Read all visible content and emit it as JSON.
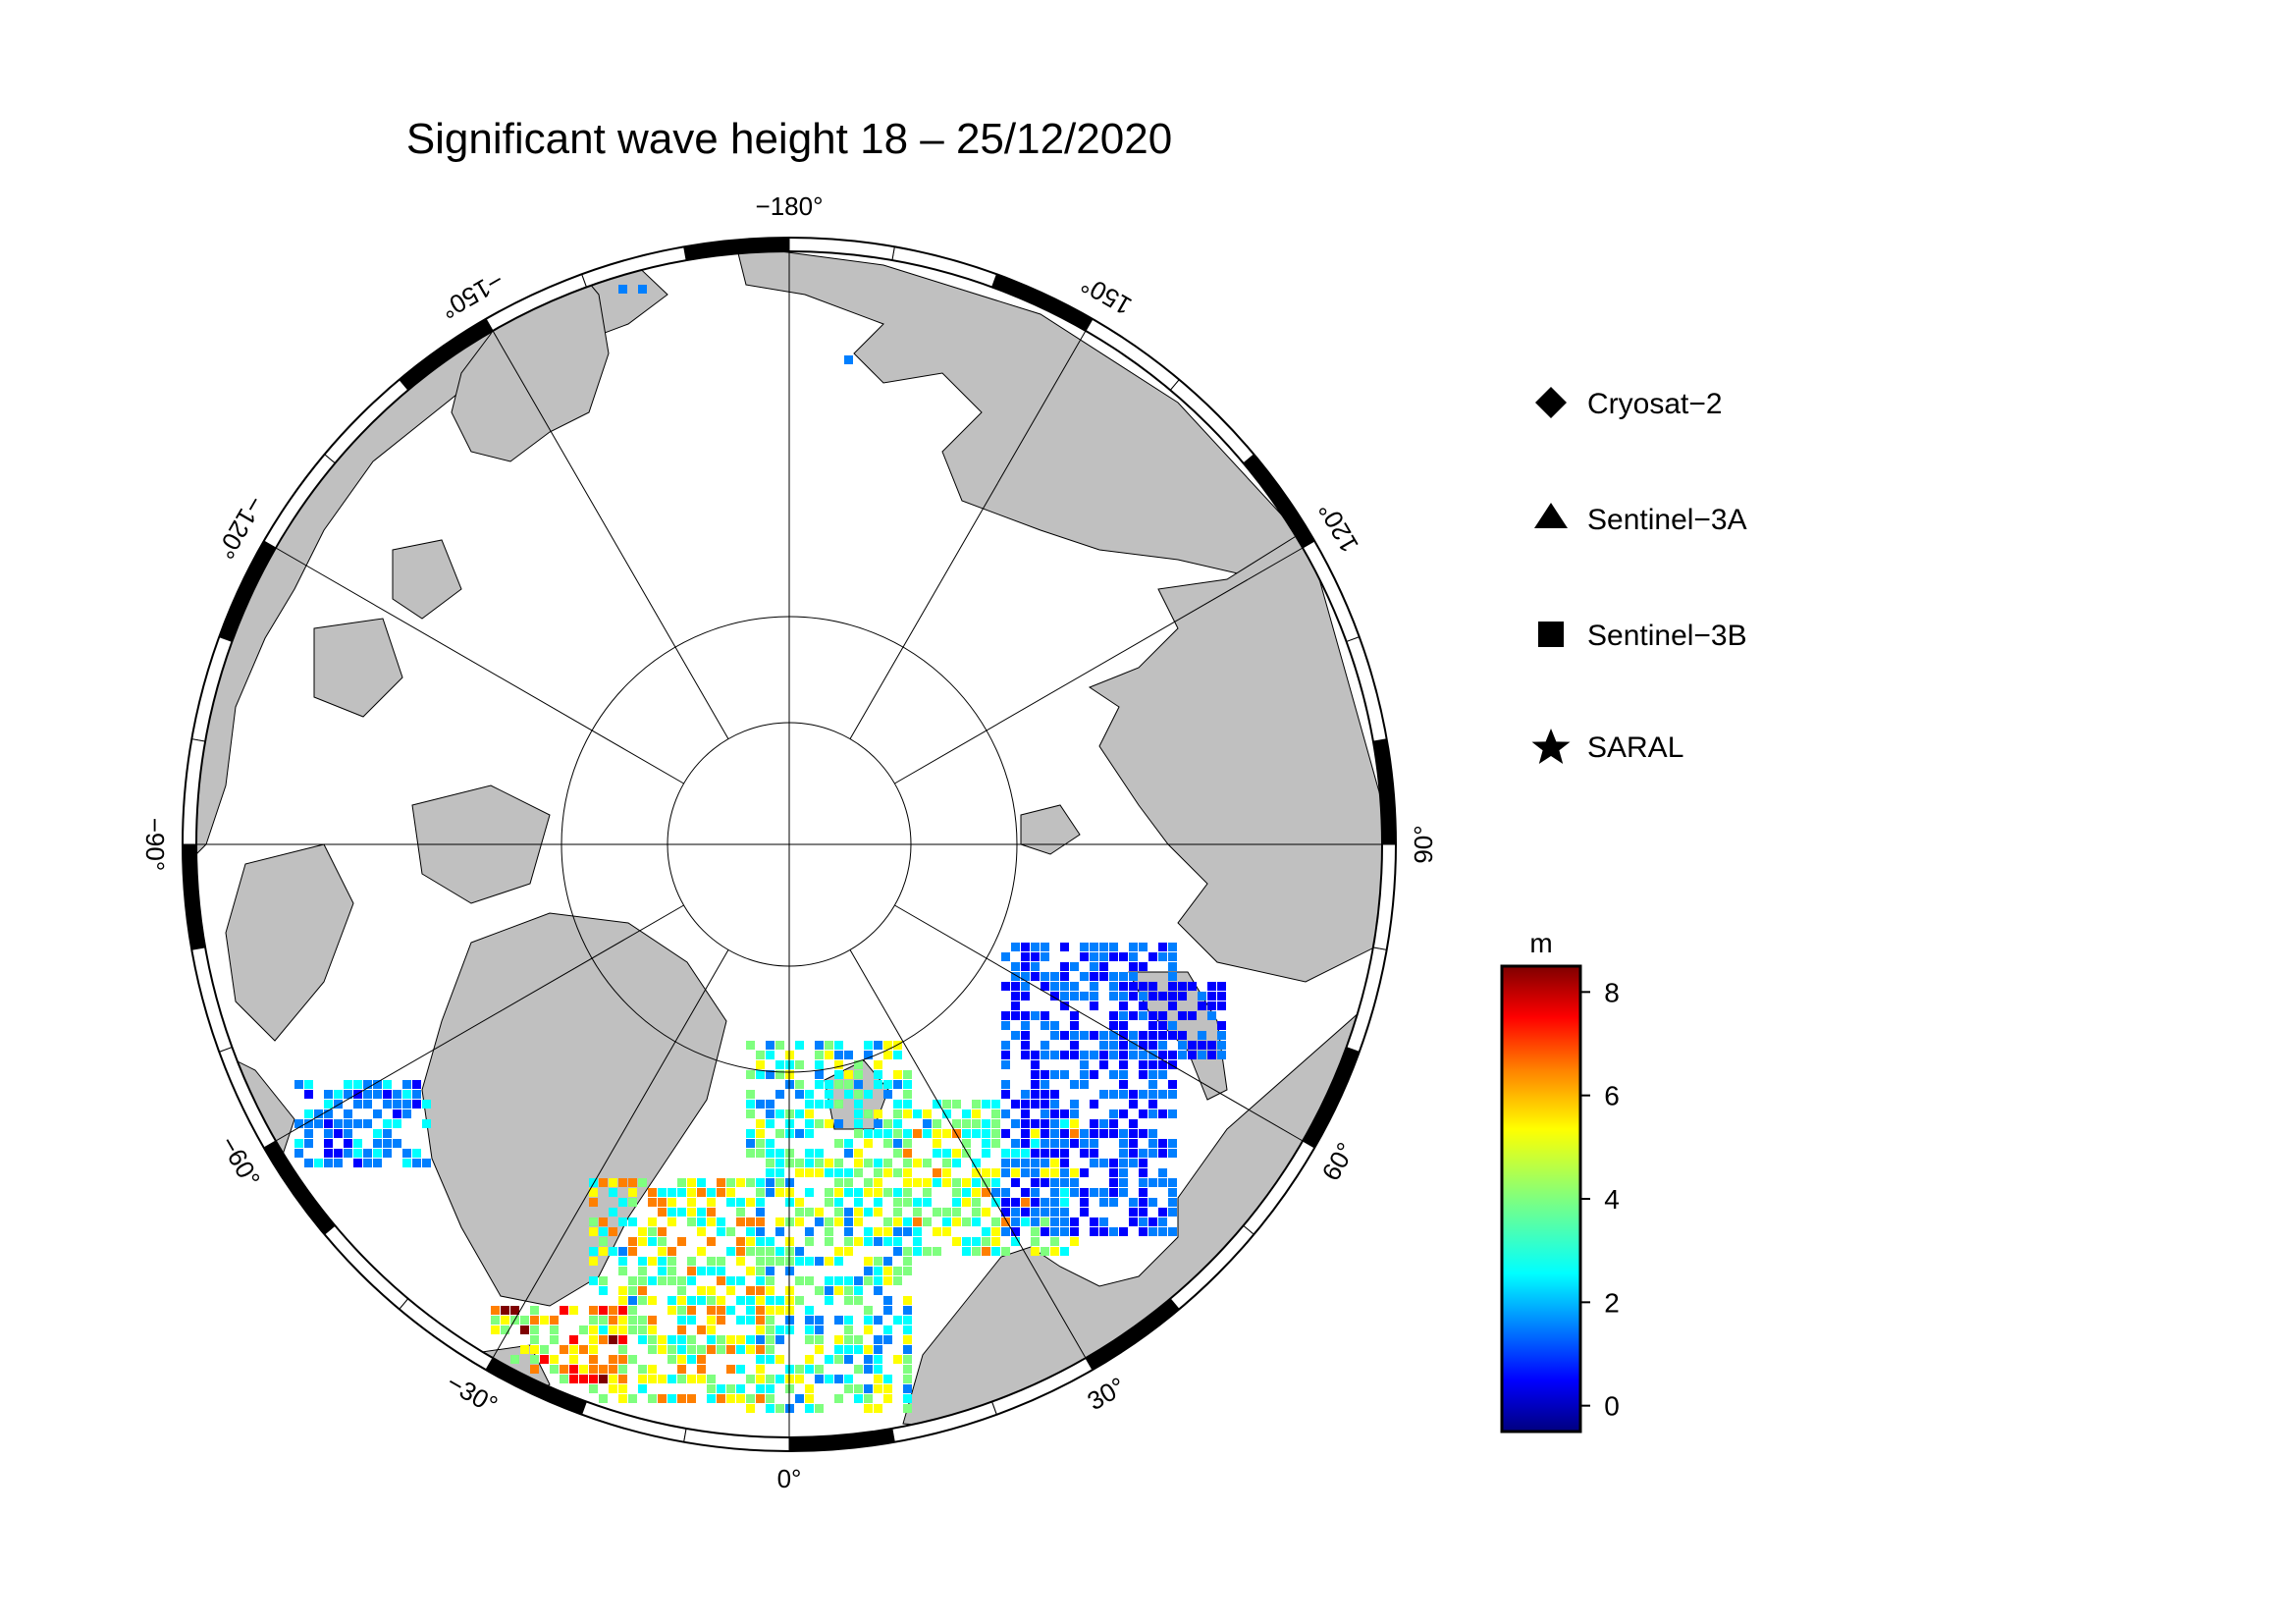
{
  "title": "Significant wave height 18 – 25/12/2020",
  "longitude_labels": [
    {
      "lon": -180,
      "text": "−180°"
    },
    {
      "lon": 150,
      "text": "150°"
    },
    {
      "lon": 120,
      "text": "120°"
    },
    {
      "lon": 90,
      "text": "90°"
    },
    {
      "lon": 60,
      "text": "60°"
    },
    {
      "lon": 30,
      "text": "30°"
    },
    {
      "lon": 0,
      "text": "0°"
    },
    {
      "lon": -30,
      "text": "−30°"
    },
    {
      "lon": -60,
      "text": "−60°"
    },
    {
      "lon": -90,
      "text": "−90°"
    },
    {
      "lon": -120,
      "text": "−120°"
    },
    {
      "lon": -150,
      "text": "−150°"
    }
  ],
  "legend": [
    {
      "label": "Cryosat−2",
      "icon": "diamond-icon"
    },
    {
      "label": "Sentinel−3A",
      "icon": "triangle-icon"
    },
    {
      "label": "Sentinel−3B",
      "icon": "square-icon"
    },
    {
      "label": "SARAL",
      "icon": "star-icon"
    }
  ],
  "colorbar": {
    "unit": "m",
    "min": -0.5,
    "max": 8.5,
    "ticks": [
      "8",
      "6",
      "4",
      "2",
      "0"
    ],
    "tick_values": [
      8,
      6,
      4,
      2,
      0
    ],
    "colormap": [
      "#00007f",
      "#0000ff",
      "#007fff",
      "#00ffff",
      "#7fff7f",
      "#ffff00",
      "#ff7f00",
      "#ff0000",
      "#7f0000"
    ]
  },
  "colors": {
    "land": "#c0c0c0",
    "ocean_ice": "#ffffff",
    "frame_black": "#000000"
  }
}
